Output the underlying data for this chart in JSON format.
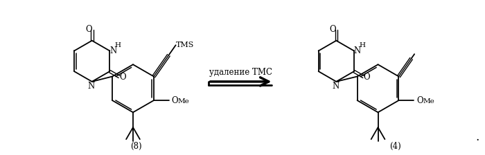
{
  "background_color": "#ffffff",
  "arrow_text": "удаление ТМС",
  "label_left": "(8)",
  "label_right": "(4)",
  "tms_label": "TMS",
  "figsize": [
    7.0,
    2.24
  ],
  "dpi": 100
}
